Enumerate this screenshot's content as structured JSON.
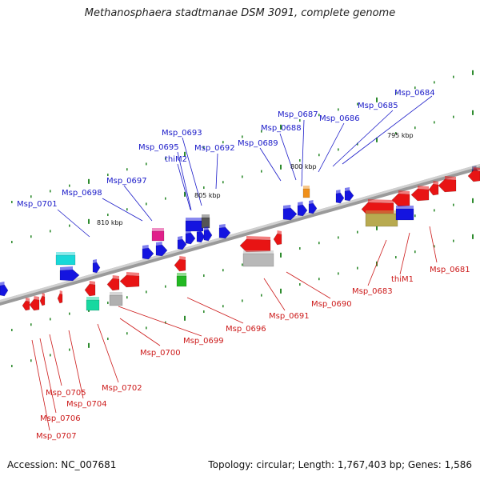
{
  "title": "Methanosphaera stadtmanae DSM 3091, complete genome",
  "accession": "Accession: NC_007681",
  "summary": "Topology: circular; Length: 1,767,403 bp; Genes: 1,586",
  "colors": {
    "plus_strand_label": "#1a1ac8",
    "minus_strand_label": "#cc1a1a",
    "axis": "#8a8a8a",
    "tick": "#2e8b2e"
  },
  "scale_labels": [
    "795 kbp",
    "800 kbp",
    "805 kbp",
    "810 kbp"
  ],
  "top_labels": [
    "Msp_0684",
    "Msp_0685",
    "Msp_0686",
    "Msp_0687",
    "Msp_0688",
    "Msp_0689",
    "Msp_0693",
    "Msp_0695",
    "thiM2",
    "Msp_0692",
    "Msp_0697",
    "Msp_0698",
    "Msp_0701"
  ],
  "bottom_labels": [
    "Msp_0681",
    "thiM1",
    "Msp_0683",
    "Msp_0690",
    "Msp_0691",
    "Msp_0696",
    "Msp_0699",
    "Msp_0700",
    "Msp_0702",
    "Msp_0704",
    "Msp_0705",
    "Msp_0706",
    "Msp_0707"
  ]
}
